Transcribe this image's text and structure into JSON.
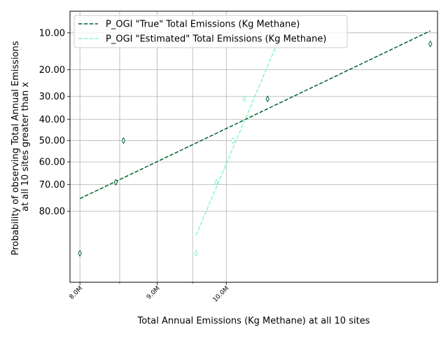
{
  "chart_data": {
    "type": "scatter",
    "xlabel": "Total Annual Emissions (Kg Methane) at all 10 sites",
    "ylabel_lines": [
      "Probability of observing Total Annual Emissions",
      "at all 10 sites greater than x"
    ],
    "x_scale": "log",
    "y_scale": "probit (inverted, probability in percent)",
    "xlim": [
      7880000,
      13800000
    ],
    "ylim_percent": [
      95.4,
      6.2
    ],
    "x_ticks": [
      {
        "value": 8000000,
        "label": "8.0M"
      },
      {
        "value": 9000000,
        "label": "9.0M"
      },
      {
        "value": 10000000,
        "label": "10.0M"
      }
    ],
    "x_minor_ticks": [
      8500000,
      9500000
    ],
    "y_ticks": [
      {
        "value": 10,
        "label": "10.00"
      },
      {
        "value": 20,
        "label": "20.00"
      },
      {
        "value": 30,
        "label": "30.00"
      },
      {
        "value": 40,
        "label": "40.00"
      },
      {
        "value": 50,
        "label": "50.00"
      },
      {
        "value": 60,
        "label": "60.00"
      },
      {
        "value": 70,
        "label": "70.00"
      },
      {
        "value": 80,
        "label": "80.00"
      }
    ],
    "grid": true,
    "legend_position": "top-left",
    "series": [
      {
        "name": "P_OGI \"True\" Total Emissions (Kg Methane)",
        "color": "#00622f",
        "points": [
          {
            "x": 8000000,
            "y": 91.0
          },
          {
            "x": 8450000,
            "y": 69.0
          },
          {
            "x": 8550000,
            "y": 50.0
          },
          {
            "x": 10650000,
            "y": 31.0
          },
          {
            "x": 13650000,
            "y": 12.5
          }
        ],
        "fit_line": [
          {
            "x": 8000000,
            "y": 75.5
          },
          {
            "x": 13650000,
            "y": 9.6
          }
        ]
      },
      {
        "name": "P_OGI \"Estimated\" Total Emissions (Kg Methane)",
        "color": "#84f7c6",
        "points": [
          {
            "x": 9550000,
            "y": 91.0
          },
          {
            "x": 9850000,
            "y": 69.0
          },
          {
            "x": 10100000,
            "y": 50.0
          },
          {
            "x": 10280000,
            "y": 31.0
          }
        ],
        "fit_line": [
          {
            "x": 9550000,
            "y": 87.0
          },
          {
            "x": 10800000,
            "y": 12.7
          }
        ]
      }
    ]
  }
}
